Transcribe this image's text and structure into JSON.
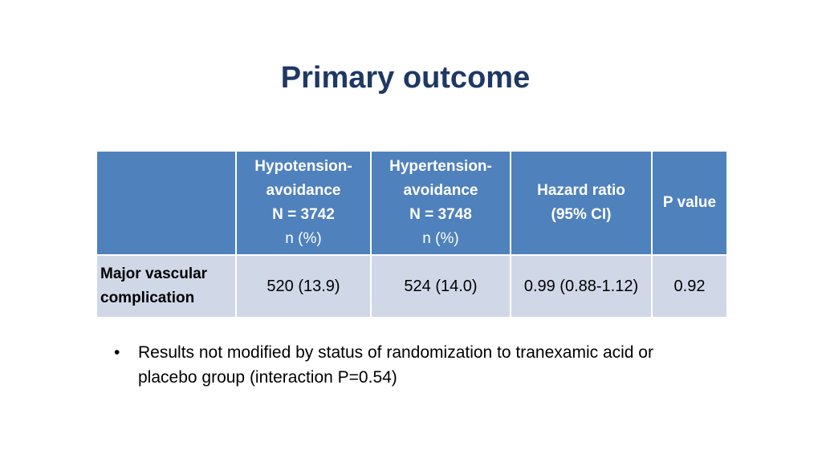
{
  "title": "Primary outcome",
  "table": {
    "headers": [
      {
        "lines": [
          "",
          "",
          "",
          ""
        ]
      },
      {
        "lines": [
          "Hypotension-",
          "avoidance",
          "N = 3742"
        ],
        "sub": "n (%)"
      },
      {
        "lines": [
          "Hypertension-",
          "avoidance",
          "N = 3748"
        ],
        "sub": "n (%)"
      },
      {
        "lines": [
          "Hazard ratio",
          "(95% CI)"
        ]
      },
      {
        "lines": [
          "P value"
        ]
      }
    ],
    "rows": [
      {
        "label_lines": [
          "Major vascular",
          "complication"
        ],
        "cells": [
          "520 (13.9)",
          "524 (14.0)",
          "0.99 (0.88-1.12)",
          "0.92"
        ]
      }
    ]
  },
  "bullet": {
    "marker": "•",
    "text": "Results not modified by status of randomization to tranexamic acid or placebo group (interaction P=0.54)"
  },
  "colors": {
    "title": "#1f3864",
    "header_bg": "#4f81bd",
    "row_bg": "#d0d8e8"
  }
}
